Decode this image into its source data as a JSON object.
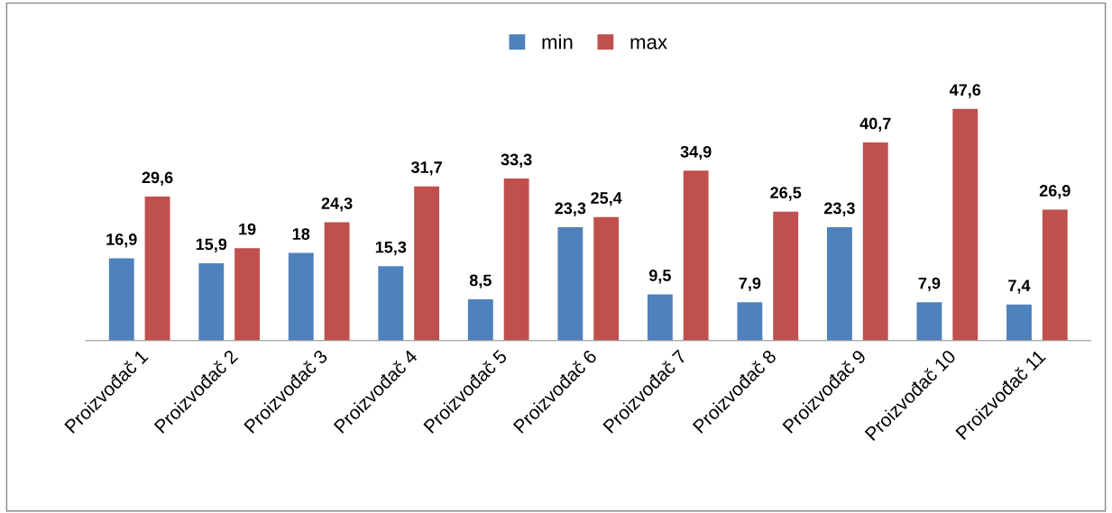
{
  "chart_data": {
    "type": "bar",
    "categories": [
      "Proizvođač 1",
      "Proizvođač 2",
      "Proizvođač 3",
      "Proizvođač 4",
      "Proizvođač 5",
      "Proizvođač 6",
      "Proizvođač 7",
      "Proizvođač 8",
      "Proizvođač 9",
      "Proizvođač 10",
      "Proizvođač 11"
    ],
    "series": [
      {
        "name": "min",
        "color": "#4f81bd",
        "values": [
          16.9,
          15.9,
          18,
          15.3,
          8.5,
          23.3,
          9.5,
          7.9,
          23.3,
          7.9,
          7.4
        ],
        "value_labels": [
          "16,9",
          "15,9",
          "18",
          "15,3",
          "8,5",
          "23,3",
          "9,5",
          "7,9",
          "23,3",
          "7,9",
          "7,4"
        ]
      },
      {
        "name": "max",
        "color": "#c0504d",
        "values": [
          29.6,
          19,
          24.3,
          31.7,
          33.3,
          25.4,
          34.9,
          26.5,
          40.7,
          47.6,
          26.9
        ],
        "value_labels": [
          "29,6",
          "19",
          "24,3",
          "31,7",
          "33,3",
          "25,4",
          "34,9",
          "26,5",
          "40,7",
          "47,6",
          "26,9"
        ]
      }
    ],
    "legend": "top",
    "tick_labels": "x"
  }
}
